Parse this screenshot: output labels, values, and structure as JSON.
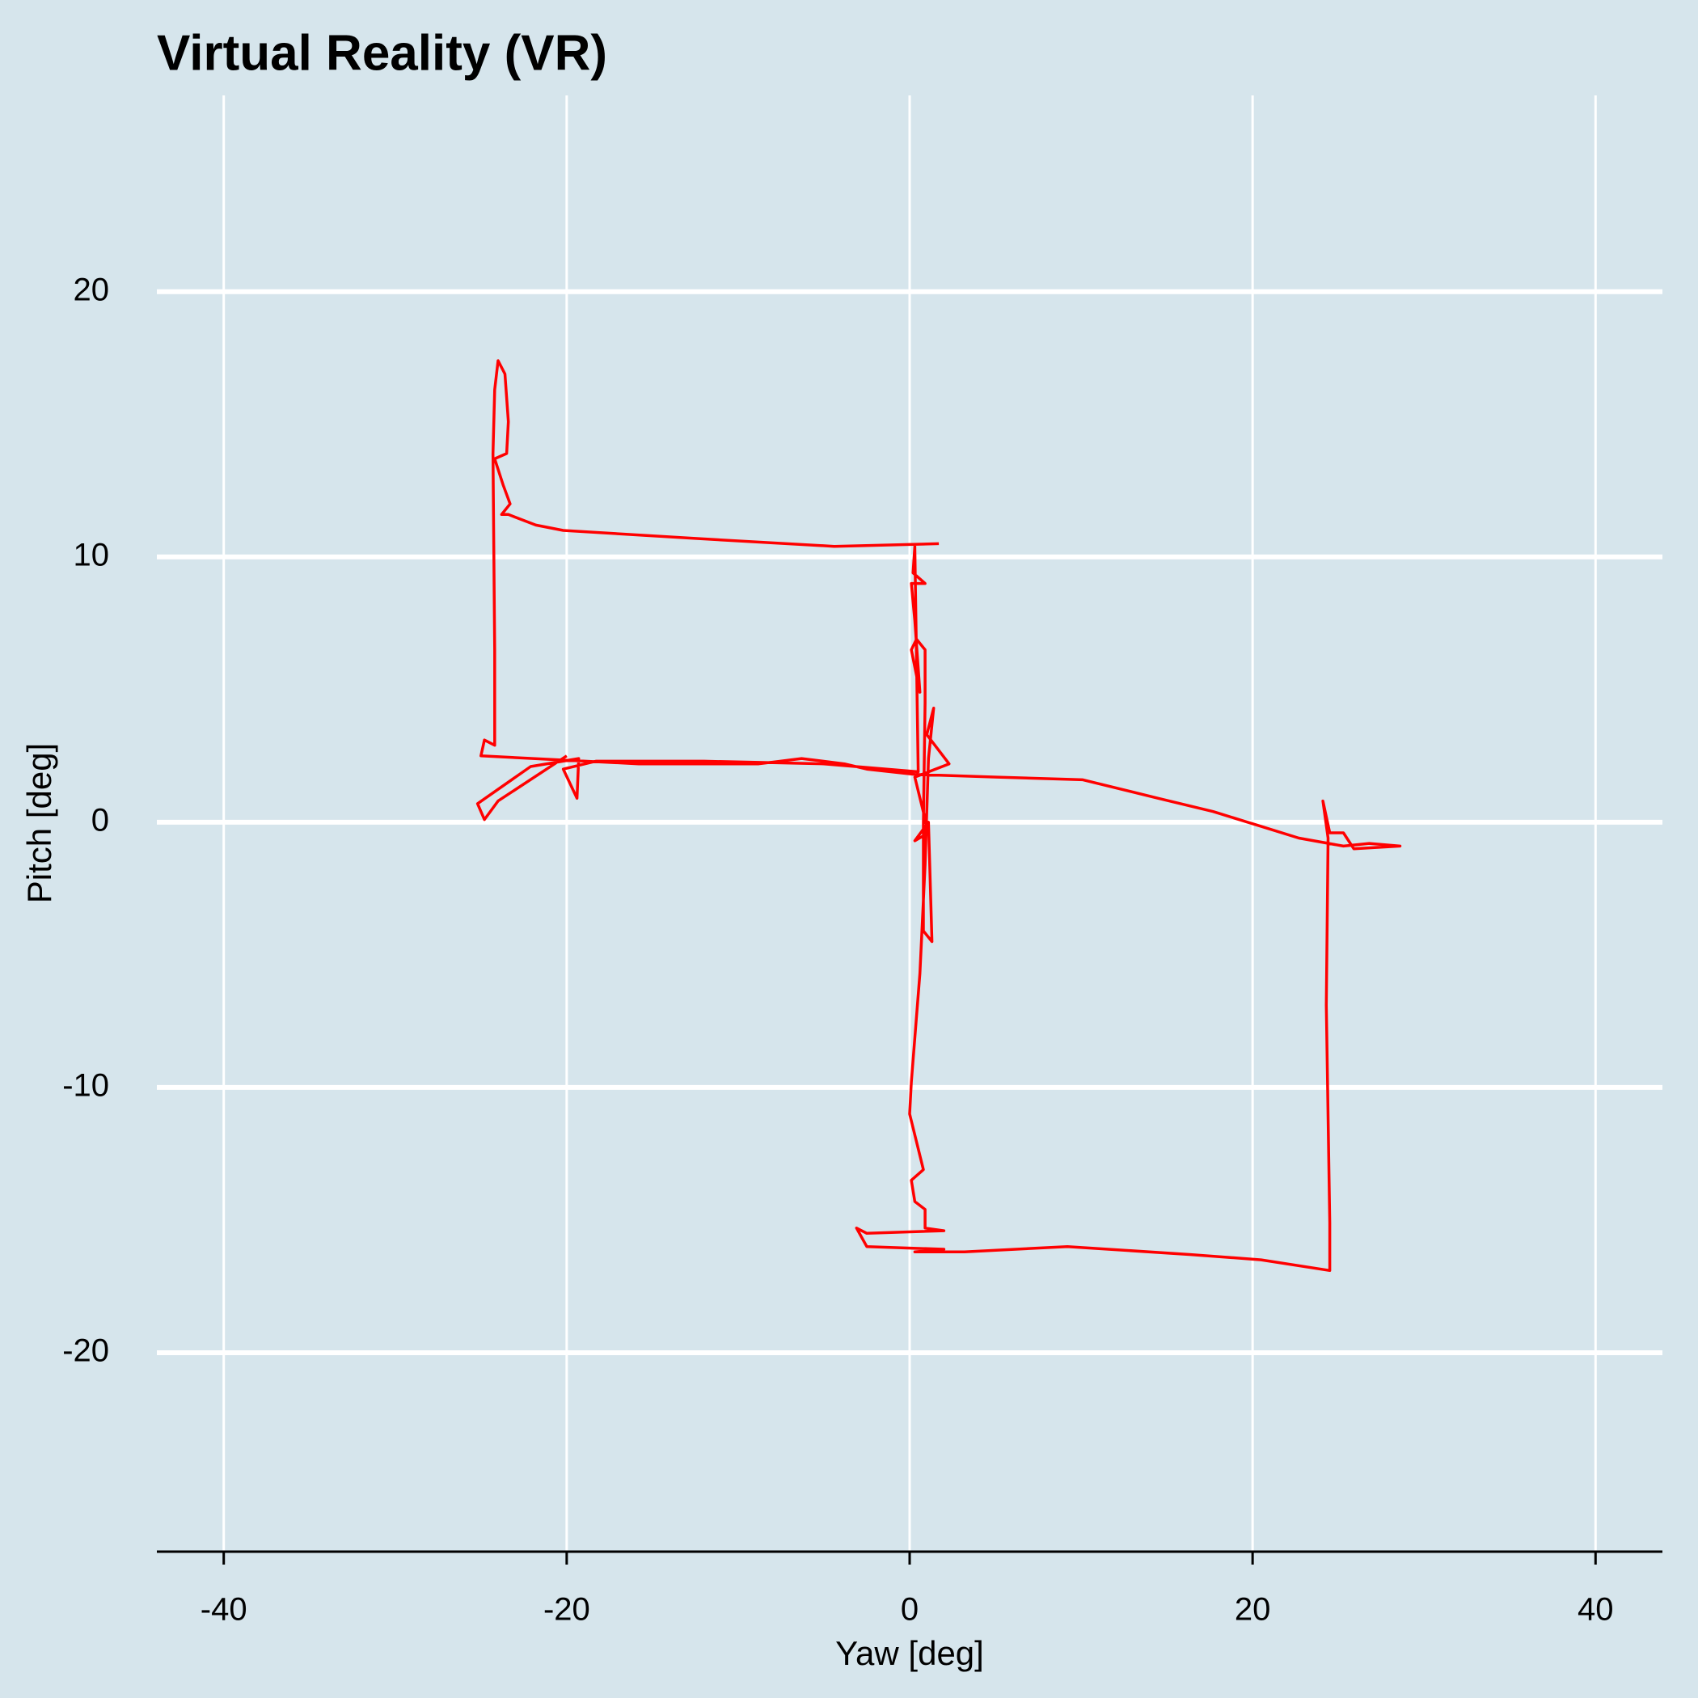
{
  "chart_data": {
    "type": "line",
    "title": "Virtual Reality (VR)",
    "xlabel": "Yaw [deg]",
    "ylabel": "Pitch [deg]",
    "x": [
      1.7,
      -4.4,
      -12.6,
      -20.2,
      -21.8,
      -23.4,
      -23.8,
      -23.3,
      -23.7,
      -24.2,
      -23.5,
      -23.4,
      -23.6,
      -24.0,
      -24.2,
      -24.3,
      -24.2,
      -24.2,
      -24.8,
      -25.0,
      -15.8,
      -8.8,
      -6.3,
      -3.8,
      -2.5,
      0.3,
      5.1,
      10.1,
      14.5,
      17.7,
      20.2,
      22.7,
      25.3,
      26.8,
      28.6,
      25.9,
      25.3,
      24.5,
      24.1,
      24.4,
      24.3,
      24.5,
      24.5,
      20.5,
      16.4,
      9.2,
      3.2,
      0.3,
      2.0,
      -2.5,
      -3.1,
      -2.5,
      2.0,
      0.9,
      0.9,
      0.3,
      0.1,
      0.8,
      0.0,
      0.1,
      0.6,
      0.9,
      1.1,
      1.4,
      1.0,
      2.3,
      0.3,
      1.1,
      0.3,
      1.1,
      1.3,
      0.8,
      0.8,
      0.9,
      0.9,
      0.4,
      0.1,
      0.6,
      0.3,
      0.1,
      0.9,
      0.2,
      0.3,
      0.5,
      -5.0,
      -12.0,
      -18.3,
      -20.2,
      -19.4,
      -19.3,
      -22.1,
      -25.2,
      -24.8,
      -24.0,
      -20.0
    ],
    "values": [
      10.5,
      10.4,
      10.7,
      11.0,
      11.2,
      11.6,
      11.6,
      12.0,
      12.7,
      13.7,
      13.9,
      15.1,
      16.9,
      17.4,
      16.3,
      13.9,
      6.5,
      2.9,
      3.1,
      2.5,
      2.2,
      2.2,
      2.4,
      2.2,
      2.0,
      1.8,
      1.7,
      1.6,
      0.9,
      0.4,
      -0.1,
      -0.6,
      -0.9,
      -0.8,
      -0.9,
      -1.0,
      -0.4,
      -0.4,
      0.8,
      -0.6,
      -6.9,
      -15.1,
      -16.9,
      -16.5,
      -16.3,
      -16.0,
      -16.2,
      -16.2,
      -16.1,
      -16.0,
      -15.3,
      -15.5,
      -15.4,
      -15.3,
      -14.6,
      -14.3,
      -13.5,
      -13.1,
      -11.0,
      -9.8,
      -5.7,
      -1.6,
      2.4,
      4.3,
      3.3,
      2.2,
      1.7,
      -0.4,
      -0.7,
      0.0,
      -4.5,
      -4.1,
      0.0,
      4.5,
      6.5,
      6.9,
      6.5,
      4.9,
      7.6,
      9.0,
      9.0,
      9.4,
      10.4,
      1.9,
      2.2,
      2.3,
      2.3,
      2.0,
      0.9,
      2.4,
      2.1,
      0.7,
      0.1,
      0.8,
      2.5
    ],
    "color": "#ff0000",
    "background": "#d6e5ec",
    "xlim": [
      -43.9,
      43.9
    ],
    "ylim": [
      -27.5,
      27.4
    ],
    "xticks": [
      -40,
      -20,
      0,
      20,
      40
    ],
    "yticks": [
      -20,
      -10,
      0,
      10,
      20
    ],
    "grid": true
  }
}
